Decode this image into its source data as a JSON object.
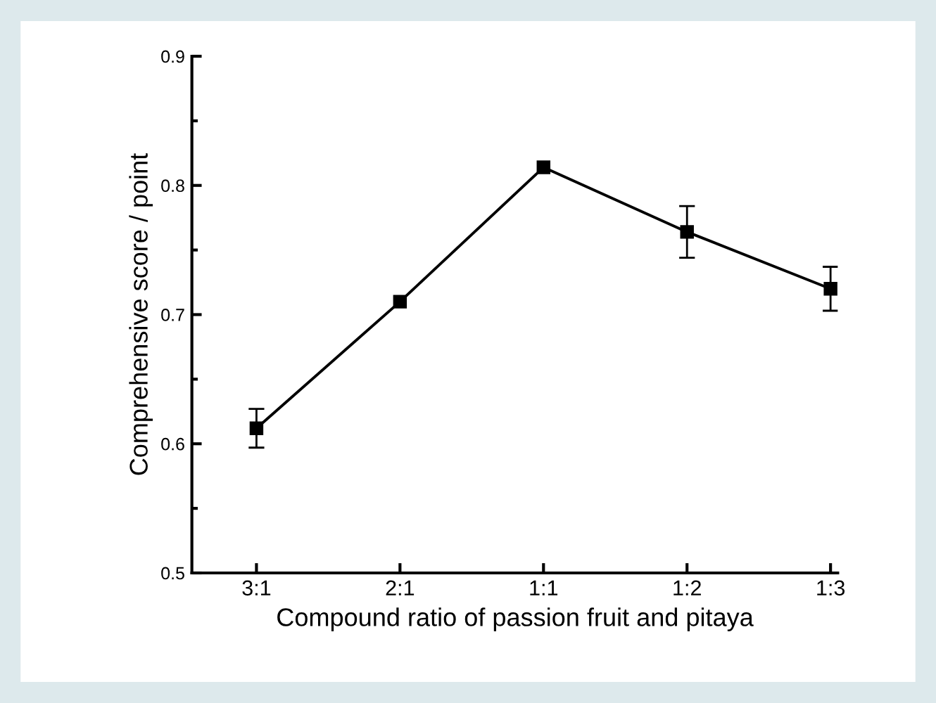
{
  "chart_data": {
    "type": "line",
    "xlabel": "Compound ratio of passion fruit and pitaya",
    "ylabel": "Comprehensive score / point",
    "categories": [
      "3:1",
      "2:1",
      "1:1",
      "1:2",
      "1:3"
    ],
    "values": [
      0.612,
      0.71,
      0.814,
      0.764,
      0.72
    ],
    "errors": [
      0.015,
      null,
      null,
      0.02,
      0.017
    ],
    "color": "#000000",
    "marker": "square",
    "line_style": "solid",
    "ylim": [
      0.5,
      0.9
    ],
    "yticks": [
      0.5,
      0.6,
      0.7,
      0.8,
      0.9
    ],
    "grid": false,
    "legend": false
  }
}
